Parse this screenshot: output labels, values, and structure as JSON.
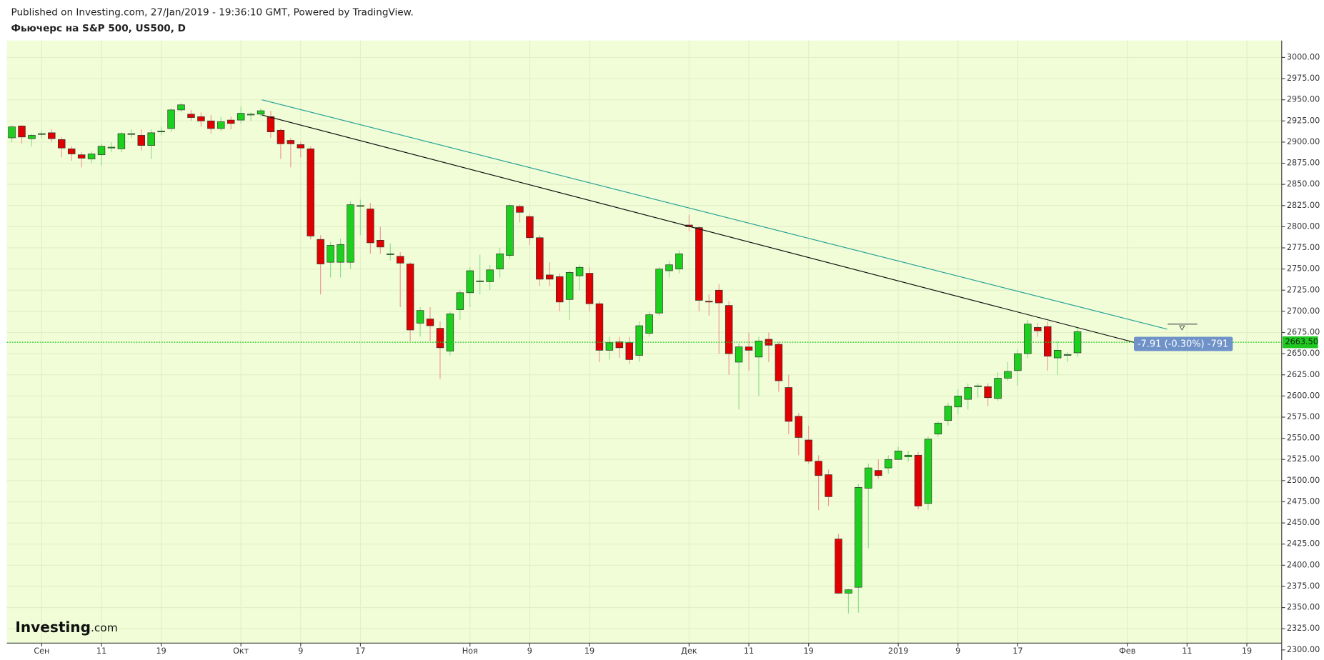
{
  "chart_data": {
    "type": "candlestick",
    "title": "Published on Investing.com, 27/Jan/2019 - 19:36:10 GMT, Powered by TradingView.",
    "subtitle": "Фьючерс на S&P 500, US500, D",
    "logo": [
      "Investing",
      ".com"
    ],
    "up_color": "#1ed01e",
    "down_color": "#e00000",
    "wick_up_color": "#8fe08f",
    "wick_down_color": "#ee9a9a",
    "background": "#f1fdd6",
    "grid": true,
    "xlim": [
      -0.5,
      127.5
    ],
    "ylim": [
      2308,
      3020
    ],
    "xticks": [
      {
        "value": 3,
        "label": "Сен"
      },
      {
        "value": 9,
        "label": "11"
      },
      {
        "value": 15,
        "label": "19"
      },
      {
        "value": 23,
        "label": "Окт"
      },
      {
        "value": 29,
        "label": "9"
      },
      {
        "value": 35,
        "label": "17"
      },
      {
        "value": 46,
        "label": "Ноя"
      },
      {
        "value": 52,
        "label": "9"
      },
      {
        "value": 58,
        "label": "19"
      },
      {
        "value": 68,
        "label": "Дек"
      },
      {
        "value": 74,
        "label": "11"
      },
      {
        "value": 80,
        "label": "19"
      },
      {
        "value": 89,
        "label": "2019"
      },
      {
        "value": 95,
        "label": "9"
      },
      {
        "value": 101,
        "label": "17"
      },
      {
        "value": 112,
        "label": "Фев"
      },
      {
        "value": 118,
        "label": "11"
      },
      {
        "value": 124,
        "label": "19"
      }
    ],
    "yticks": [
      {
        "value": 2300,
        "label": "2300.00"
      },
      {
        "value": 2325,
        "label": "2325.00"
      },
      {
        "value": 2350,
        "label": "2350.00"
      },
      {
        "value": 2375,
        "label": "2375.00"
      },
      {
        "value": 2400,
        "label": "2400.00"
      },
      {
        "value": 2425,
        "label": "2425.00"
      },
      {
        "value": 2450,
        "label": "2450.00"
      },
      {
        "value": 2475,
        "label": "2475.00"
      },
      {
        "value": 2500,
        "label": "2500.00"
      },
      {
        "value": 2525,
        "label": "2525.00"
      },
      {
        "value": 2550,
        "label": "2550.00"
      },
      {
        "value": 2575,
        "label": "2575.00"
      },
      {
        "value": 2600,
        "label": "2600.00"
      },
      {
        "value": 2625,
        "label": "2625.00"
      },
      {
        "value": 2650,
        "label": "2650.00"
      },
      {
        "value": 2675,
        "label": "2675.00"
      },
      {
        "value": 2700,
        "label": "2700.00"
      },
      {
        "value": 2725,
        "label": "2725.00"
      },
      {
        "value": 2750,
        "label": "2750.00"
      },
      {
        "value": 2775,
        "label": "2775.00"
      },
      {
        "value": 2800,
        "label": "2800.00"
      },
      {
        "value": 2825,
        "label": "2825.00"
      },
      {
        "value": 2850,
        "label": "2850.00"
      },
      {
        "value": 2875,
        "label": "2875.00"
      },
      {
        "value": 2900,
        "label": "2900.00"
      },
      {
        "value": 2925,
        "label": "2925.00"
      },
      {
        "value": 2950,
        "label": "2950.00"
      },
      {
        "value": 2975,
        "label": "2975.00"
      },
      {
        "value": 3000,
        "label": "3000.00"
      }
    ],
    "open": [
      2905,
      2919,
      2904,
      2909,
      2911,
      2903,
      2892,
      2885,
      2880,
      2885,
      2893,
      2892,
      2909,
      2908,
      2896,
      2912,
      2916,
      2938,
      2933,
      2930,
      2925,
      2916,
      2926,
      2926,
      2932,
      2933,
      2930,
      2914,
      2902,
      2897,
      2892,
      2785,
      2758,
      2758,
      2758,
      2824,
      2821,
      2784,
      2768,
      2765,
      2756,
      2686,
      2691,
      2680,
      2653,
      2702,
      2722,
      2735,
      2735,
      2750,
      2766,
      2824,
      2812,
      2787,
      2743,
      2741,
      2714,
      2742,
      2745,
      2709,
      2654,
      2664,
      2663,
      2648,
      2674,
      2698,
      2748,
      2750,
      2802,
      2799,
      2712,
      2725,
      2707,
      2640,
      2658,
      2646,
      2667,
      2661,
      2610,
      2576,
      2548,
      2523,
      2507,
      2431,
      2367,
      2374,
      2491,
      2512,
      2515,
      2525,
      2528,
      2530,
      2473,
      2555,
      2571,
      2587,
      2596,
      2611,
      2611,
      2597,
      2621,
      2630,
      2650,
      2681,
      2682,
      2645,
      2648,
      2651
    ],
    "high": [
      2920,
      2920,
      2910,
      2913,
      2915,
      2906,
      2895,
      2888,
      2889,
      2898,
      2900,
      2912,
      2915,
      2915,
      2915,
      2918,
      2940,
      2946,
      2938,
      2935,
      2932,
      2930,
      2930,
      2942,
      2935,
      2940,
      2937,
      2916,
      2905,
      2900,
      2895,
      2790,
      2782,
      2786,
      2830,
      2832,
      2828,
      2800,
      2780,
      2770,
      2758,
      2705,
      2705,
      2688,
      2700,
      2725,
      2752,
      2767,
      2755,
      2775,
      2827,
      2826,
      2815,
      2790,
      2758,
      2745,
      2748,
      2755,
      2752,
      2712,
      2670,
      2670,
      2670,
      2688,
      2700,
      2752,
      2760,
      2772,
      2814,
      2801,
      2720,
      2732,
      2712,
      2662,
      2675,
      2670,
      2675,
      2664,
      2625,
      2580,
      2565,
      2530,
      2513,
      2437,
      2372,
      2496,
      2520,
      2525,
      2530,
      2540,
      2535,
      2534,
      2552,
      2570,
      2592,
      2608,
      2615,
      2615,
      2615,
      2628,
      2640,
      2655,
      2690,
      2686,
      2688,
      2665,
      2652,
      2680
    ],
    "low": [
      2900,
      2898,
      2895,
      2905,
      2900,
      2882,
      2878,
      2870,
      2875,
      2872,
      2888,
      2888,
      2905,
      2890,
      2880,
      2908,
      2912,
      2935,
      2925,
      2918,
      2910,
      2913,
      2915,
      2922,
      2925,
      2930,
      2905,
      2880,
      2870,
      2882,
      2785,
      2720,
      2740,
      2740,
      2750,
      2790,
      2768,
      2768,
      2760,
      2705,
      2665,
      2670,
      2665,
      2620,
      2648,
      2690,
      2705,
      2720,
      2725,
      2740,
      2762,
      2805,
      2778,
      2730,
      2730,
      2700,
      2690,
      2725,
      2700,
      2640,
      2643,
      2645,
      2638,
      2640,
      2670,
      2695,
      2740,
      2745,
      2795,
      2700,
      2695,
      2650,
      2625,
      2584,
      2630,
      2600,
      2640,
      2605,
      2555,
      2530,
      2520,
      2465,
      2470,
      2366,
      2343,
      2344,
      2420,
      2502,
      2508,
      2525,
      2522,
      2466,
      2465,
      2552,
      2565,
      2578,
      2584,
      2598,
      2588,
      2594,
      2618,
      2612,
      2645,
      2670,
      2630,
      2625,
      2640,
      2646
    ],
    "close": [
      2918,
      2906,
      2908,
      2910,
      2904,
      2893,
      2886,
      2881,
      2886,
      2895,
      2894,
      2910,
      2910,
      2896,
      2911,
      2913,
      2938,
      2944,
      2929,
      2925,
      2916,
      2924,
      2922,
      2934,
      2933,
      2937,
      2912,
      2898,
      2898,
      2893,
      2789,
      2756,
      2778,
      2779,
      2826,
      2825,
      2781,
      2776,
      2768,
      2757,
      2678,
      2701,
      2683,
      2657,
      2697,
      2722,
      2748,
      2736,
      2749,
      2768,
      2825,
      2817,
      2787,
      2738,
      2738,
      2711,
      2746,
      2752,
      2709,
      2654,
      2663,
      2657,
      2643,
      2683,
      2696,
      2750,
      2755,
      2768,
      2800,
      2713,
      2711,
      2710,
      2650,
      2658,
      2654,
      2665,
      2660,
      2618,
      2570,
      2551,
      2523,
      2506,
      2481,
      2367,
      2371,
      2492,
      2515,
      2506,
      2525,
      2535,
      2530,
      2470,
      2549,
      2568,
      2588,
      2600,
      2610,
      2612,
      2598,
      2621,
      2629,
      2650,
      2685,
      2677,
      2647,
      2654,
      2649,
      2676
    ],
    "last_price": {
      "value": 2663.5,
      "label": "2663.50",
      "color": "#22c822"
    },
    "trendlines": [
      {
        "color": "#111111",
        "x": [
          25.1,
          112.8
        ],
        "y": [
          2932,
          2663
        ]
      },
      {
        "color": "#2aa39a",
        "x": [
          25.1,
          116
        ],
        "y": [
          2950,
          2679
        ]
      }
    ],
    "annotation": "-7.91 (-0.30%) -791"
  }
}
